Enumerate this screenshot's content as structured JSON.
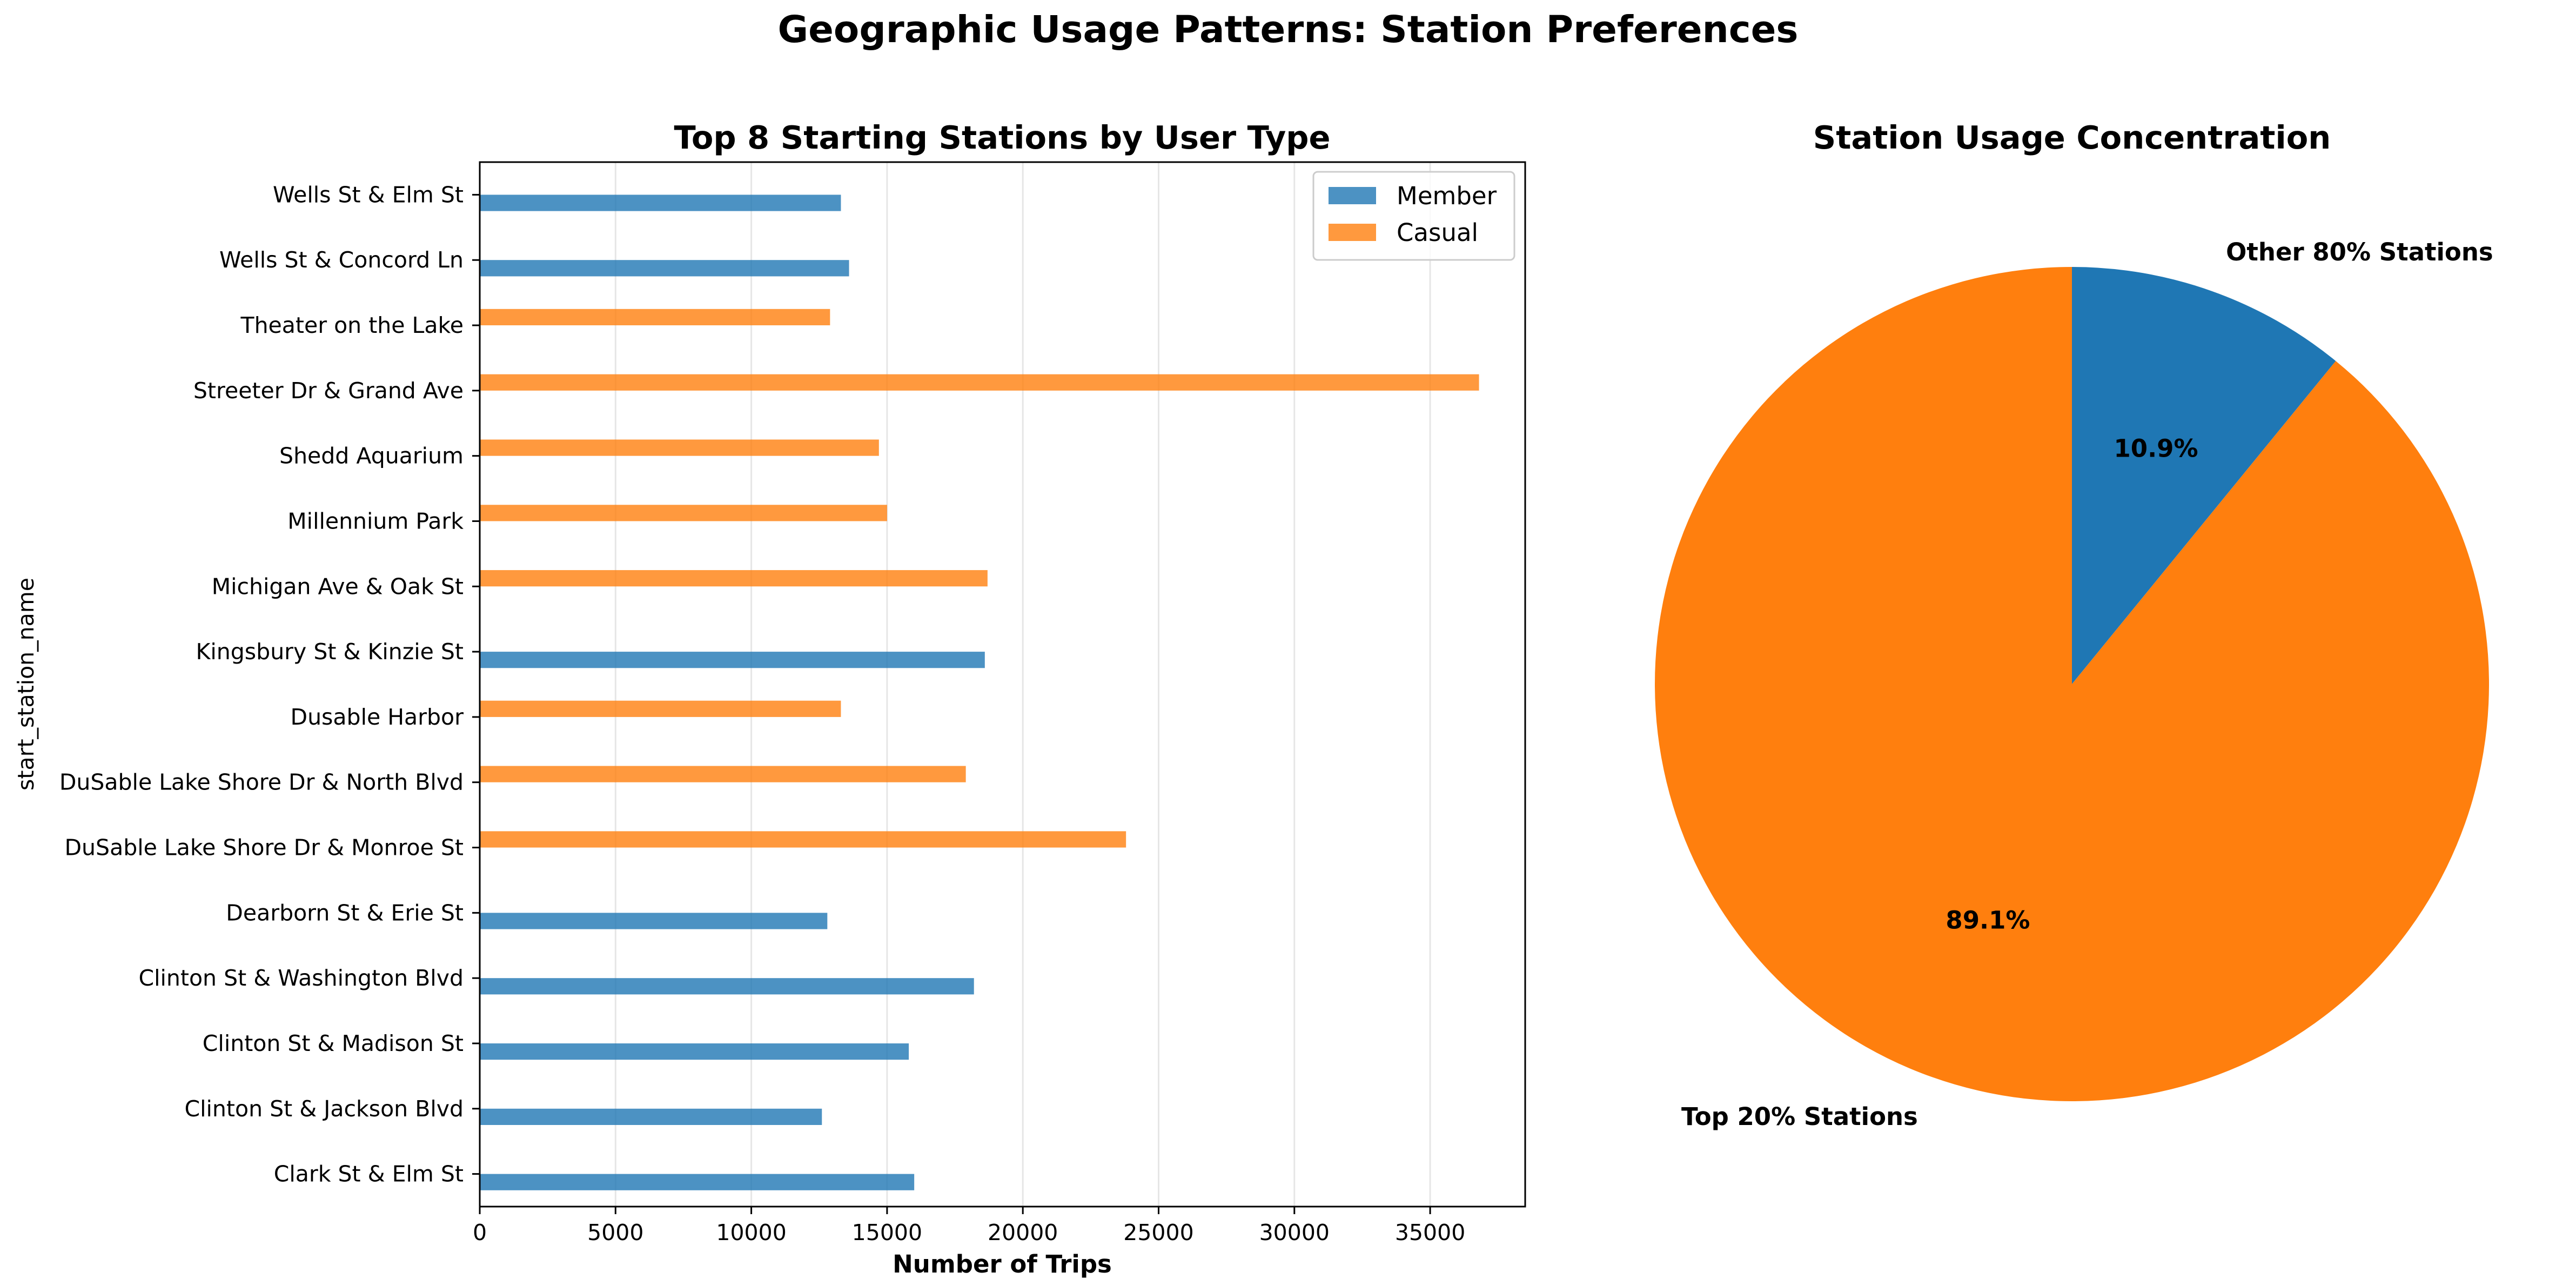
{
  "figure_title": "Geographic Usage Patterns: Station Preferences",
  "chart_data": [
    {
      "type": "bar",
      "orientation": "horizontal",
      "title": "Top 8 Starting Stations by User Type",
      "xlabel": "Number of Trips",
      "ylabel": "start_station_name",
      "xlim": [
        0,
        38500
      ],
      "xticks": [
        0,
        5000,
        10000,
        15000,
        20000,
        25000,
        30000,
        35000
      ],
      "grid": "vertical",
      "legend_position": "upper right",
      "categories": [
        "Clark St & Elm St",
        "Clinton St & Jackson Blvd",
        "Clinton St & Madison St",
        "Clinton St & Washington Blvd",
        "Dearborn St & Erie St",
        "DuSable Lake Shore Dr & Monroe St",
        "DuSable Lake Shore Dr & North Blvd",
        "Dusable Harbor",
        "Kingsbury St & Kinzie St",
        "Michigan Ave & Oak St",
        "Millennium Park",
        "Shedd Aquarium",
        "Streeter Dr & Grand Ave",
        "Theater on the Lake",
        "Wells St & Concord Ln",
        "Wells St & Elm St"
      ],
      "series": [
        {
          "name": "Member",
          "color": "#1f77b4",
          "values": [
            16000,
            12600,
            15800,
            18200,
            12800,
            null,
            null,
            null,
            18600,
            null,
            null,
            null,
            null,
            null,
            13600,
            13300
          ]
        },
        {
          "name": "Casual",
          "color": "#ff7f0e",
          "values": [
            null,
            null,
            null,
            null,
            null,
            23800,
            17900,
            13300,
            null,
            18700,
            15000,
            14700,
            36800,
            12900,
            null,
            null
          ]
        }
      ]
    },
    {
      "type": "pie",
      "title": "Station Usage Concentration",
      "slices": [
        {
          "label": "Other 80% Stations",
          "value": 10.9,
          "pct_label": "10.9%",
          "color": "#1f77b4"
        },
        {
          "label": "Top 20% Stations",
          "value": 89.1,
          "pct_label": "89.1%",
          "color": "#ff7f0e"
        }
      ],
      "start_angle": "top, clockwise"
    }
  ]
}
